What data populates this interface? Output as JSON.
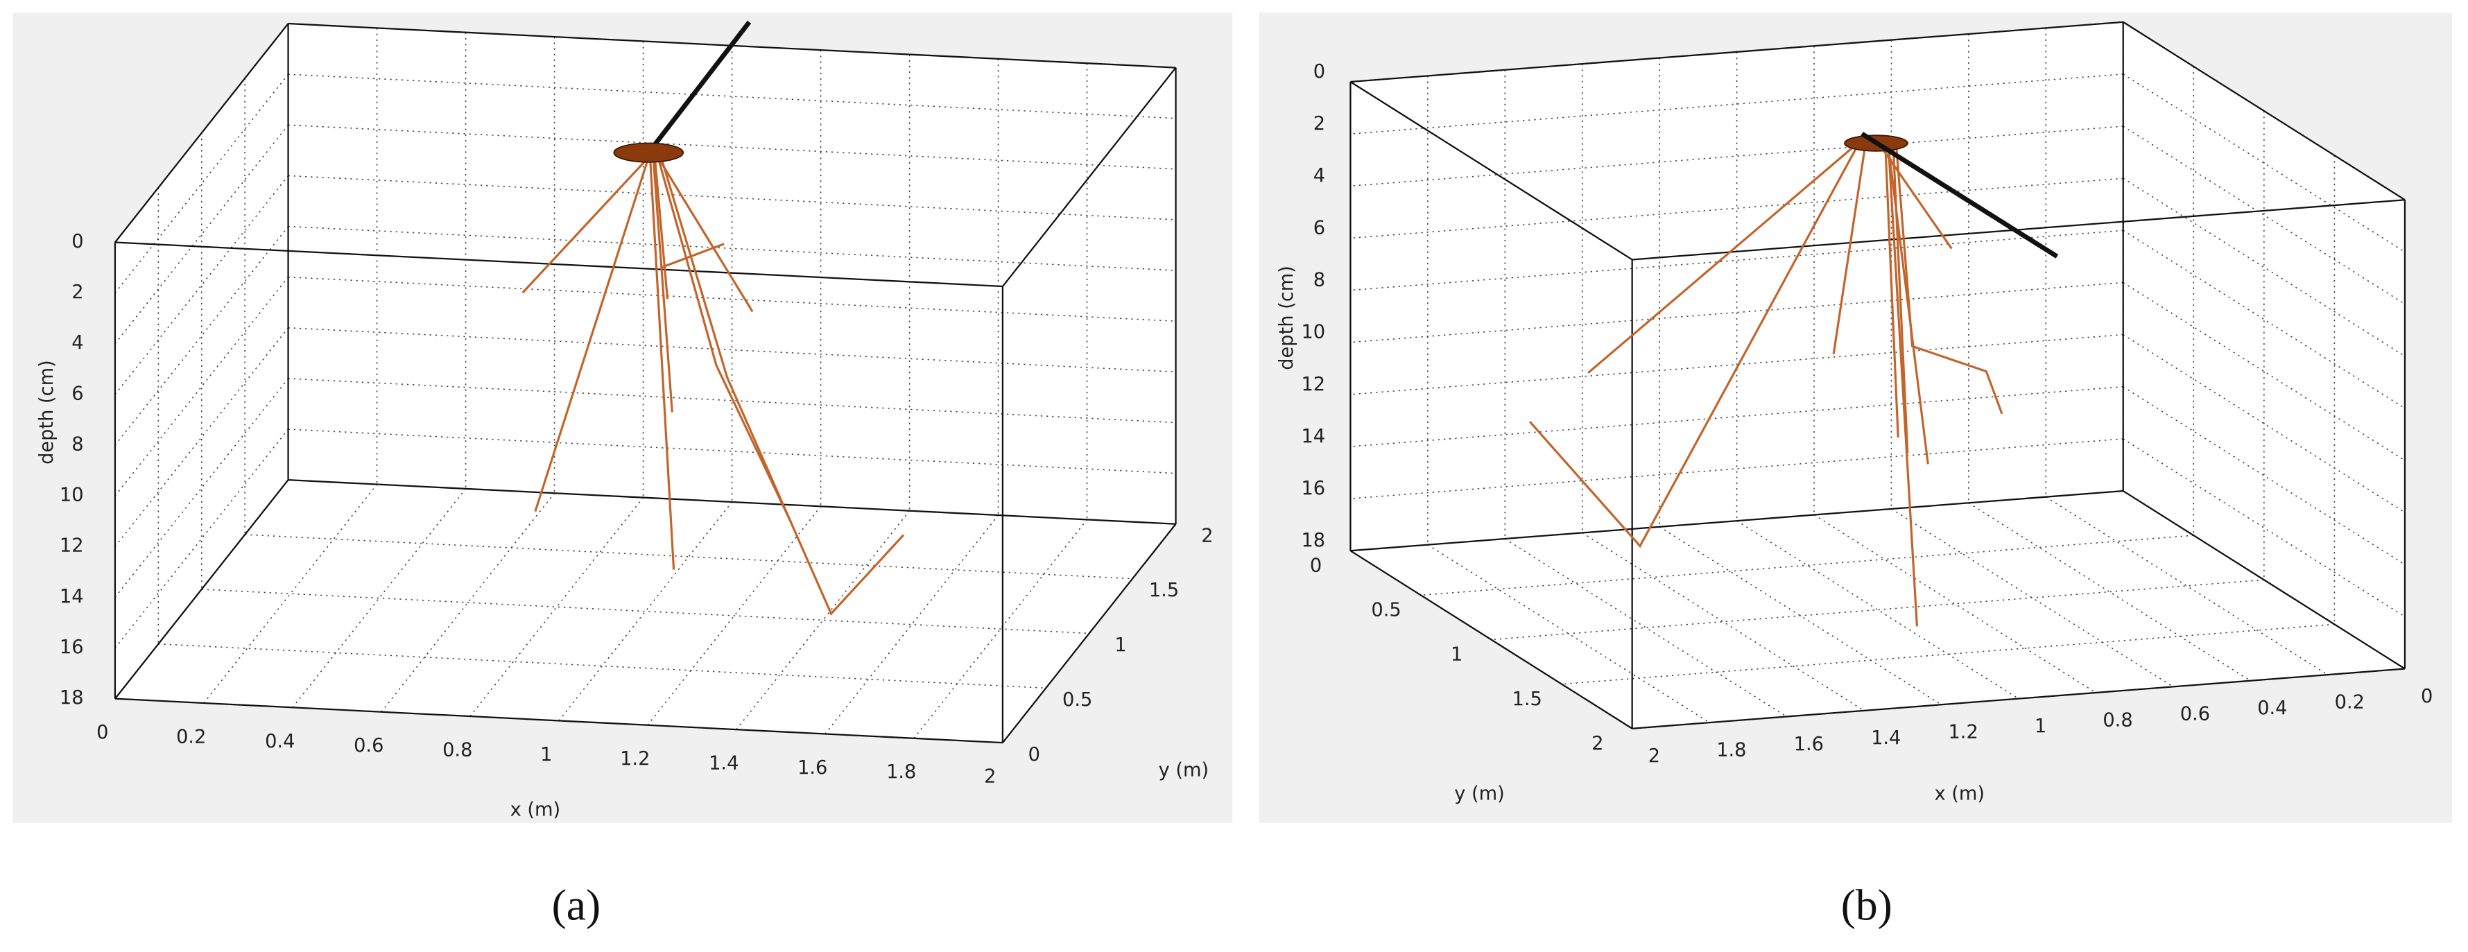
{
  "chart_data": [
    {
      "type": "line3d",
      "caption": "(a)",
      "xlabel": "x (m)",
      "ylabel": "y (m)",
      "zlabel": "depth (cm)",
      "xlim": [
        0,
        2
      ],
      "ylim": [
        0,
        2
      ],
      "zlim": [
        0,
        18
      ],
      "xticks": [
        0,
        0.2,
        0.4,
        0.6,
        0.8,
        1,
        1.2,
        1.4,
        1.6,
        1.8,
        2
      ],
      "yticks": [
        0,
        0.5,
        1,
        1.5,
        2
      ],
      "zticks": [
        0,
        2,
        4,
        6,
        8,
        10,
        12,
        14,
        16,
        18
      ],
      "grid": true
    },
    {
      "type": "line3d",
      "caption": "(b)",
      "xlabel": "x (m)",
      "ylabel": "y (m)",
      "zlabel": "depth (cm)",
      "xlim": [
        0,
        2
      ],
      "ylim": [
        0,
        2
      ],
      "zlim": [
        0,
        18
      ],
      "xticks": [
        0,
        0.2,
        0.4,
        0.6,
        0.8,
        1,
        1.2,
        1.4,
        1.6,
        1.8,
        2
      ],
      "yticks": [
        0,
        0.5,
        1,
        1.5,
        2
      ],
      "zticks": [
        0,
        2,
        4,
        6,
        8,
        10,
        12,
        14,
        16,
        18
      ],
      "grid": true
    }
  ]
}
